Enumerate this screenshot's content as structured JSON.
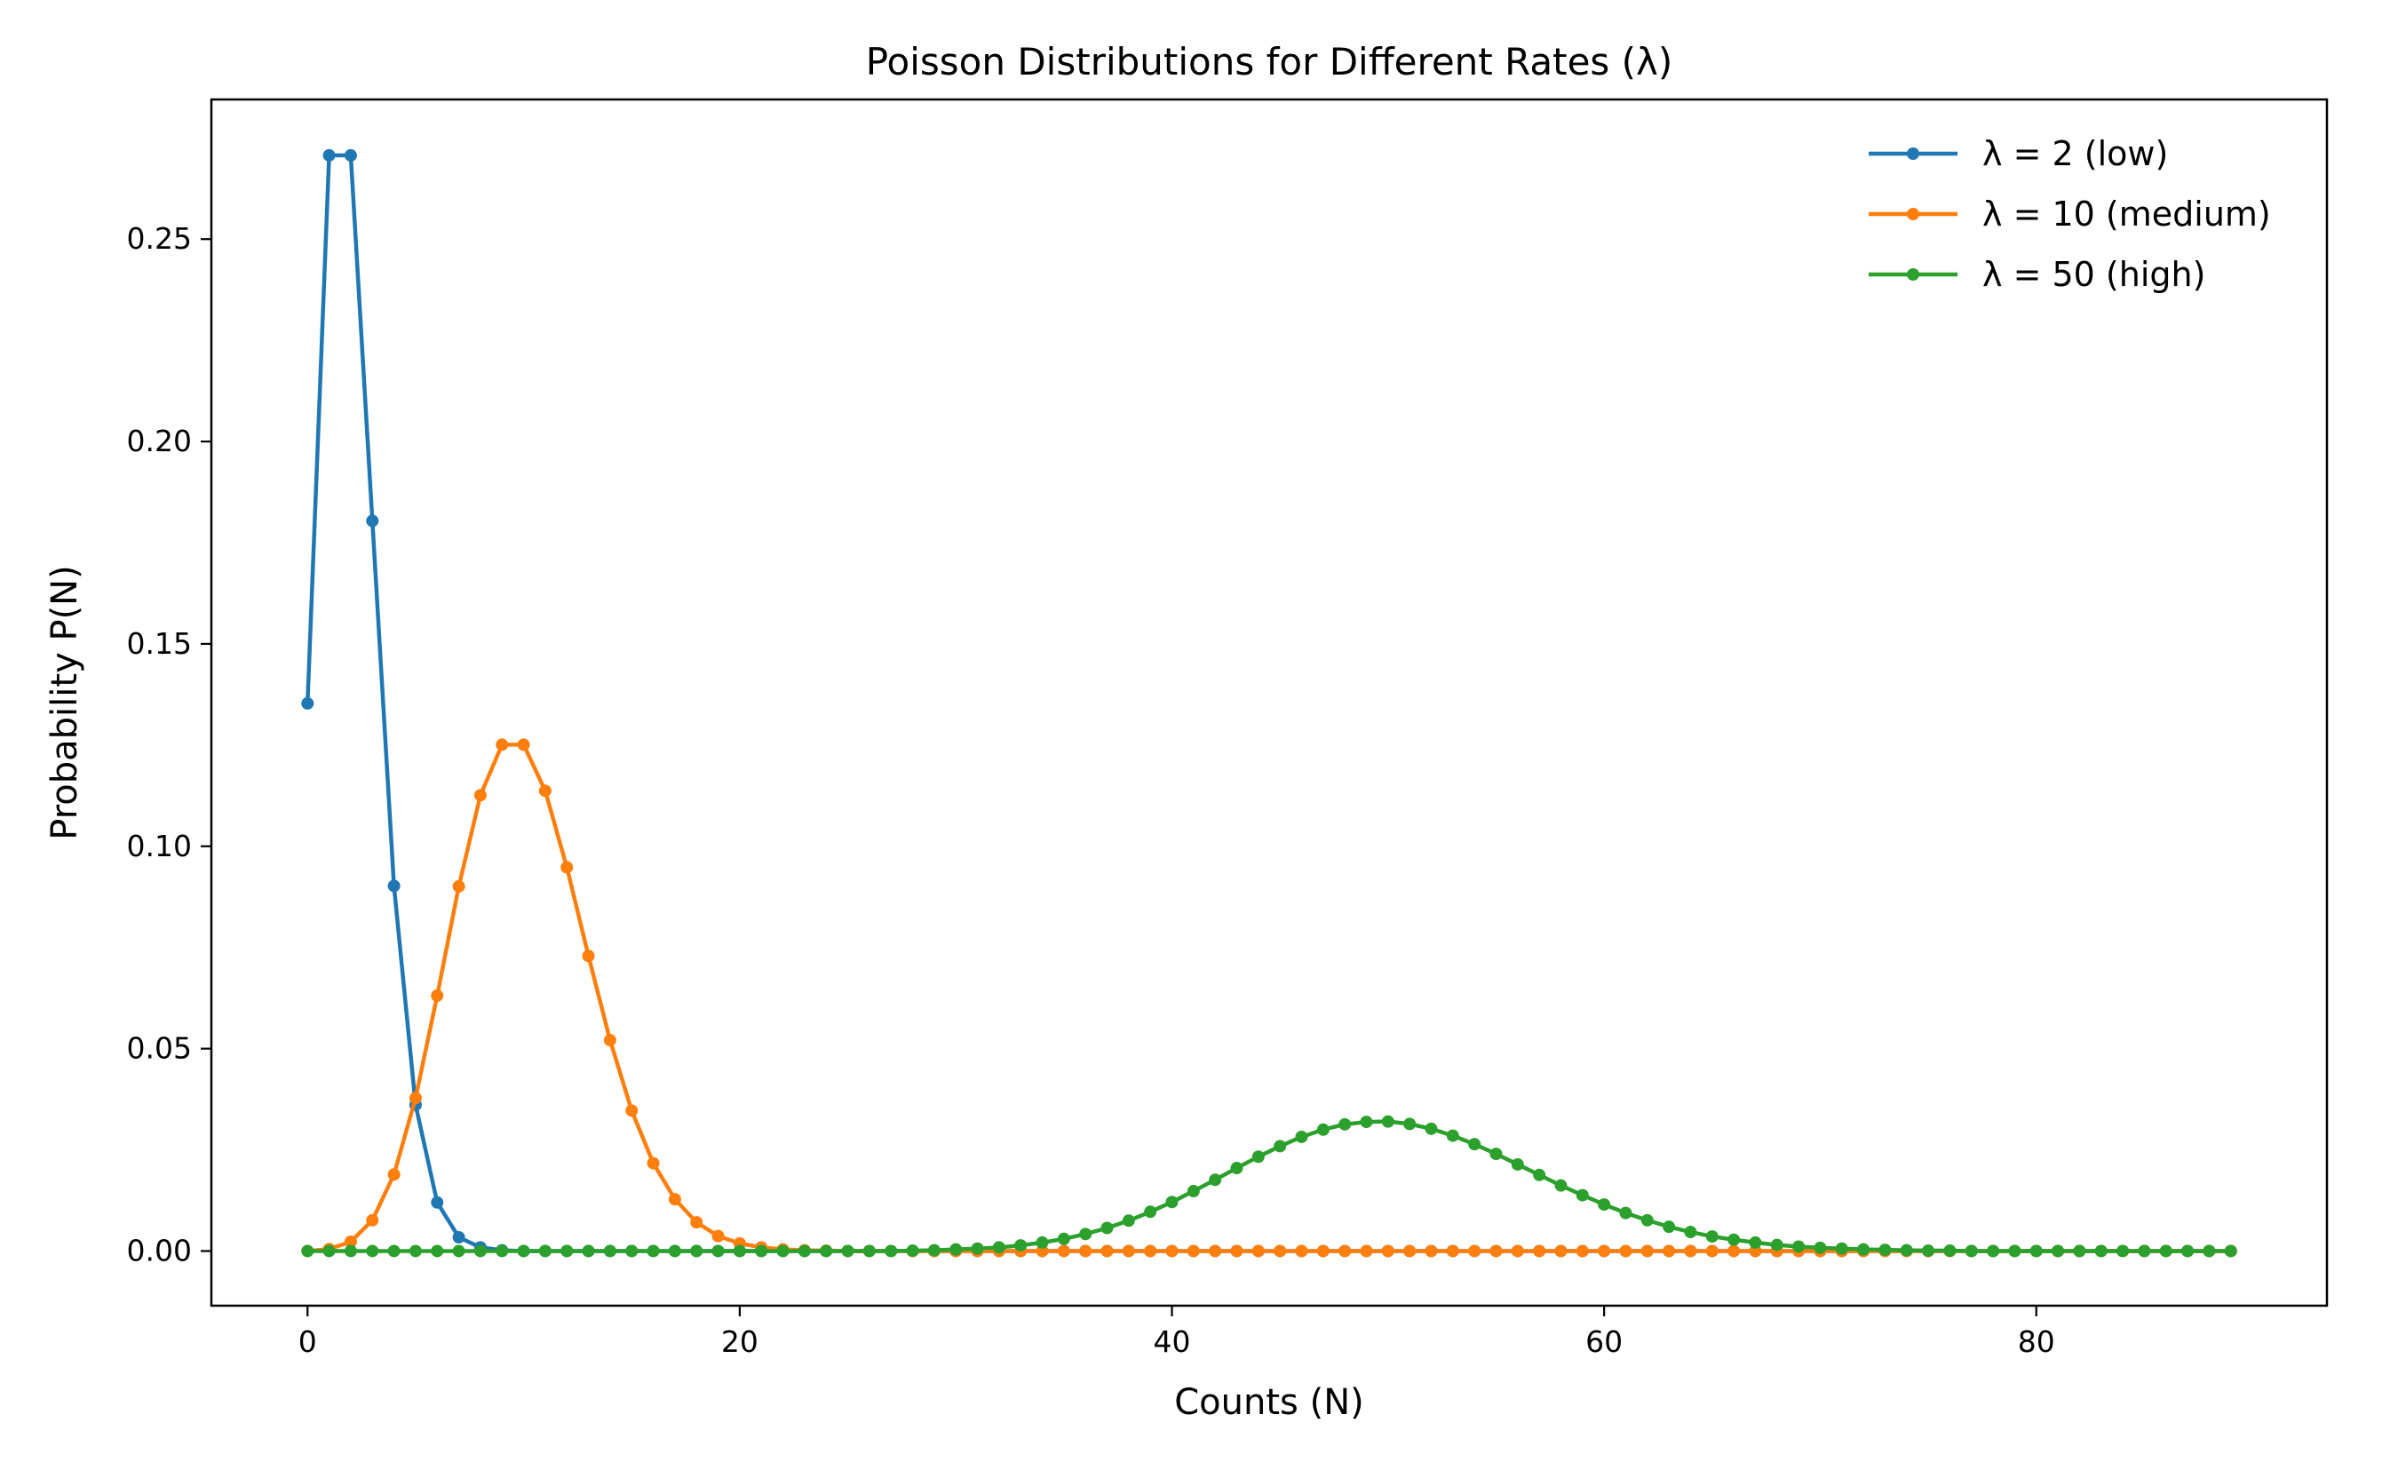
{
  "chart_data": {
    "type": "line",
    "title": "Poisson Distributions for Different Rates (λ)",
    "xlabel": "Counts (N)",
    "ylabel": "Probability P(N)",
    "xlim": [
      -4.45,
      93.45
    ],
    "ylim": [
      -0.0135,
      0.2845
    ],
    "xticks": [
      0,
      20,
      40,
      60,
      80
    ],
    "xtick_labels": [
      "0",
      "20",
      "40",
      "60",
      "80"
    ],
    "yticks": [
      0,
      0.05,
      0.1,
      0.15,
      0.2,
      0.25
    ],
    "ytick_labels": [
      "0.00",
      "0.05",
      "0.10",
      "0.15",
      "0.20",
      "0.25"
    ],
    "grid": false,
    "legend_position": "top-right",
    "x": [
      0,
      1,
      2,
      3,
      4,
      5,
      6,
      7,
      8,
      9,
      10,
      11,
      12,
      13,
      14,
      15,
      16,
      17,
      18,
      19,
      20,
      21,
      22,
      23,
      24,
      25,
      26,
      27,
      28,
      29,
      30,
      31,
      32,
      33,
      34,
      35,
      36,
      37,
      38,
      39,
      40,
      41,
      42,
      43,
      44,
      45,
      46,
      47,
      48,
      49,
      50,
      51,
      52,
      53,
      54,
      55,
      56,
      57,
      58,
      59,
      60,
      61,
      62,
      63,
      64,
      65,
      66,
      67,
      68,
      69,
      70,
      71,
      72,
      73,
      74,
      75,
      76,
      77,
      78,
      79,
      80,
      81,
      82,
      83,
      84,
      85,
      86,
      87,
      88,
      89
    ],
    "series": [
      {
        "name": "λ = 2 (low)",
        "color": "#1f77b4",
        "values": [
          0.1353,
          0.2707,
          0.2707,
          0.1804,
          0.0902,
          0.0361,
          0.012,
          0.0034,
          0.0009,
          0.0002,
          0,
          0,
          0,
          0,
          0,
          0,
          0,
          0,
          0,
          0,
          0,
          0,
          0,
          0,
          0,
          0,
          0,
          0,
          0,
          0,
          0,
          0,
          0,
          0,
          0,
          0,
          0,
          0,
          0,
          0,
          0,
          0,
          0,
          0,
          0,
          0,
          0,
          0,
          0,
          0,
          0,
          0,
          0,
          0,
          0,
          0,
          0,
          0,
          0,
          0,
          0,
          0,
          0,
          0,
          0,
          0,
          0,
          0,
          0,
          0,
          0,
          0,
          0,
          0,
          0,
          0,
          0,
          0,
          0,
          0,
          0,
          0,
          0,
          0,
          0,
          0,
          0,
          0,
          0,
          0
        ]
      },
      {
        "name": "λ = 10 (medium)",
        "color": "#ff7f0e",
        "values": [
          0,
          0.0005,
          0.0023,
          0.0076,
          0.0189,
          0.0378,
          0.0631,
          0.0901,
          0.1126,
          0.1251,
          0.1251,
          0.1137,
          0.0948,
          0.0729,
          0.0521,
          0.0347,
          0.0217,
          0.0128,
          0.0071,
          0.0037,
          0.0019,
          0.0009,
          0.0004,
          0.0002,
          0.0001,
          0,
          0,
          0,
          0,
          0,
          0,
          0,
          0,
          0,
          0,
          0,
          0,
          0,
          0,
          0,
          0,
          0,
          0,
          0,
          0,
          0,
          0,
          0,
          0,
          0,
          0,
          0,
          0,
          0,
          0,
          0,
          0,
          0,
          0,
          0,
          0,
          0,
          0,
          0,
          0,
          0,
          0,
          0,
          0,
          0,
          0,
          0,
          0,
          0,
          0,
          0,
          0,
          0,
          0,
          0,
          0,
          0,
          0,
          0,
          0,
          0,
          0,
          0,
          0,
          0
        ]
      },
      {
        "name": "λ = 50 (high)",
        "color": "#2ca02c",
        "values": [
          0,
          0,
          0,
          0,
          0,
          0,
          0,
          0,
          0,
          0,
          0,
          0,
          0,
          0,
          0,
          0,
          0,
          0,
          0,
          0,
          0,
          0,
          0,
          0,
          0,
          0,
          0,
          0,
          0.0001,
          0.0002,
          0.0004,
          0.0006,
          0.0009,
          0.0014,
          0.0021,
          0.003,
          0.0042,
          0.0057,
          0.0075,
          0.0097,
          0.0121,
          0.0148,
          0.0176,
          0.0205,
          0.0233,
          0.0259,
          0.0282,
          0.03,
          0.0313,
          0.0319,
          0.032,
          0.0314,
          0.0302,
          0.0285,
          0.0264,
          0.024,
          0.0214,
          0.0188,
          0.0162,
          0.0138,
          0.0115,
          0.0094,
          0.0076,
          0.006,
          0.0047,
          0.0036,
          0.0028,
          0.0021,
          0.0015,
          0.0011,
          0.0008,
          0.0006,
          0.0004,
          0.0003,
          0.0002,
          0.0001,
          0.0001,
          0,
          0,
          0,
          0,
          0,
          0,
          0,
          0,
          0,
          0,
          0,
          0,
          0
        ]
      }
    ]
  }
}
